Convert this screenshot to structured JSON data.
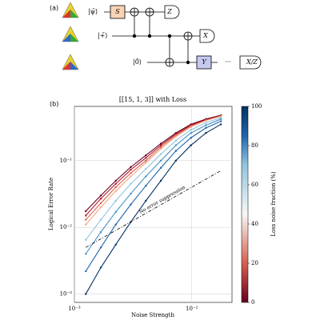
{
  "panel_a": {
    "label": "(a)",
    "states": [
      "|ψ̄⟩",
      "|+̄⟩",
      "|0̄⟩"
    ],
    "gates": [
      "S",
      "Y"
    ],
    "measurements": [
      "Z",
      "X",
      "X/Z"
    ],
    "dots": "···"
  },
  "chart_data": {
    "type": "line",
    "panel_label": "(b)",
    "title": "[[15, 1, 3]] with Loss",
    "x_label": "Noise Strength",
    "y_label": "Logical Error Rate",
    "log_x": true,
    "log_y": true,
    "grid": true,
    "x": [
      0.00125,
      0.00168,
      0.00225,
      0.00302,
      0.00406,
      0.00545,
      0.00732,
      0.00983,
      0.0132,
      0.0177
    ],
    "series": [
      {
        "color": "#67001f",
        "values": [
          0.0175,
          0.03,
          0.05,
          0.08,
          0.12,
          0.18,
          0.26,
          0.35,
          0.42,
          0.48
        ]
      },
      {
        "color": "#b2182b",
        "values": [
          0.015,
          0.027,
          0.045,
          0.073,
          0.11,
          0.17,
          0.25,
          0.34,
          0.41,
          0.47
        ]
      },
      {
        "color": "#d6604d",
        "values": [
          0.013,
          0.023,
          0.04,
          0.065,
          0.1,
          0.16,
          0.24,
          0.33,
          0.4,
          0.47
        ]
      },
      {
        "color": "#f4a582",
        "values": [
          0.011,
          0.02,
          0.035,
          0.058,
          0.093,
          0.15,
          0.23,
          0.32,
          0.4,
          0.46
        ]
      },
      {
        "color": "#92c5de",
        "values": [
          0.0065,
          0.013,
          0.025,
          0.045,
          0.075,
          0.125,
          0.2,
          0.29,
          0.37,
          0.44
        ]
      },
      {
        "color": "#4393c3",
        "values": [
          0.004,
          0.0085,
          0.017,
          0.032,
          0.058,
          0.1,
          0.17,
          0.26,
          0.34,
          0.42
        ]
      },
      {
        "color": "#2166ac",
        "values": [
          0.0022,
          0.005,
          0.011,
          0.022,
          0.042,
          0.078,
          0.14,
          0.22,
          0.31,
          0.39
        ]
      },
      {
        "color": "#053061",
        "values": [
          0.001,
          0.0025,
          0.0055,
          0.012,
          0.025,
          0.05,
          0.1,
          0.17,
          0.26,
          0.35
        ]
      }
    ],
    "reference": {
      "label": "No error suppression",
      "x": [
        0.00125,
        0.0177
      ],
      "values": [
        0.005,
        0.0708
      ],
      "label_x": 0.0036
    },
    "xlim": [
      0.001,
      0.022
    ],
    "xticks": [
      {
        "value": 0.001,
        "label": "10⁻³"
      },
      {
        "value": 0.01,
        "label": "10⁻²"
      }
    ],
    "ylim": [
      0.00075,
      0.65
    ],
    "yticks": [
      {
        "value": 0.001,
        "label": "10⁻³"
      },
      {
        "value": 0.01,
        "label": "10⁻²"
      },
      {
        "value": 0.1,
        "label": "10⁻¹"
      }
    ],
    "colorbar": {
      "label": "Loss noise fraction (%)",
      "lim": [
        0,
        100
      ],
      "ticks": [
        0,
        20,
        40,
        60,
        80,
        100
      ]
    }
  }
}
